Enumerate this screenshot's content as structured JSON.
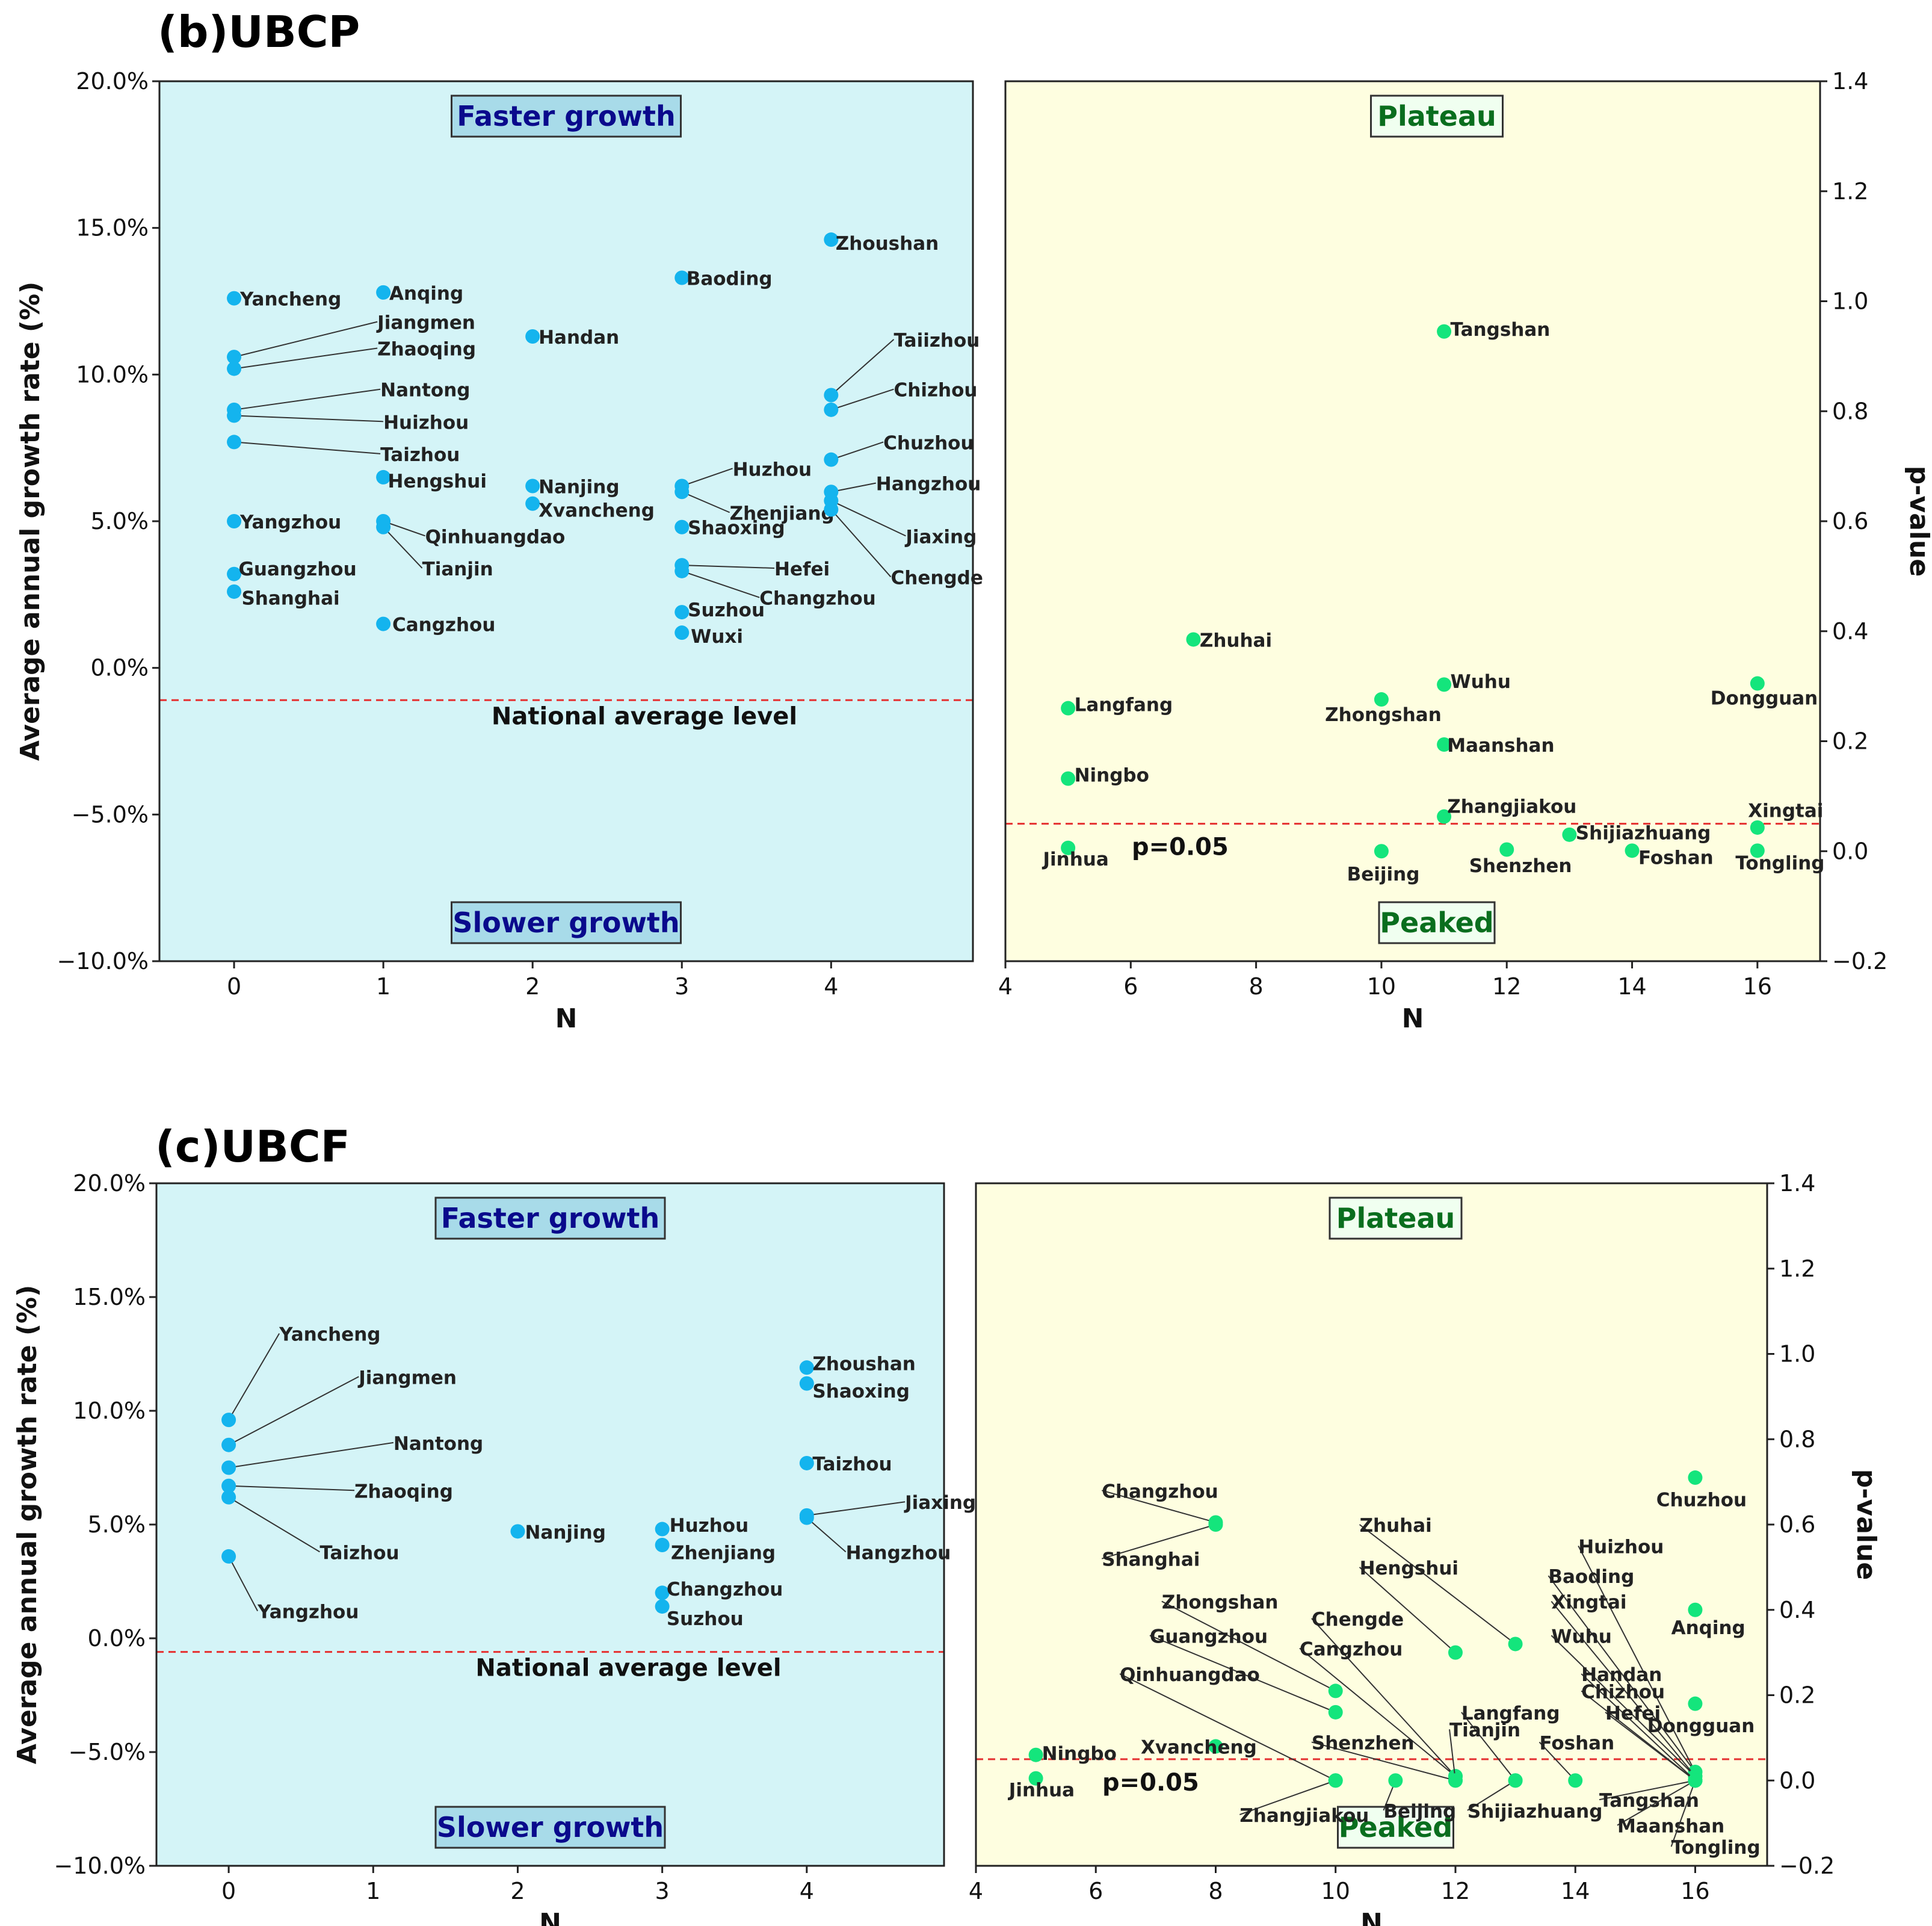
{
  "colors": {
    "left_bg": "#d4f4f7",
    "right_bg": "#fefee0",
    "left_dot": "#14b4ee",
    "right_dot": "#14e57c",
    "ref_line": "#e53030",
    "left_box_text": "#0a0a8c",
    "left_box_bg": "#a8dbe9",
    "right_box_text": "#0a6e1e",
    "right_box_bg": "#f0fff0"
  },
  "chart_data": [
    {
      "panel": "b",
      "title": "(b)UBCP",
      "left": {
        "type": "scatter",
        "xlabel": "N",
        "ylabel": "Average annual growth rate (%)",
        "xlim": [
          -0.5,
          4.95
        ],
        "ylim": [
          -10,
          20
        ],
        "xticks": [
          "0",
          "1",
          "2",
          "3",
          "4"
        ],
        "yticks": [
          "−10.0%",
          "−5.0%",
          "0.0%",
          "5.0%",
          "10.0%",
          "15.0%",
          "20.0%"
        ],
        "top_box": "Faster growth",
        "bottom_box": "Slower growth",
        "reference": {
          "y": -1.1,
          "label": "National average level"
        },
        "points": [
          {
            "name": "Yancheng",
            "x": 0,
            "y": 12.6,
            "lx": 0.04,
            "ly": 12.6
          },
          {
            "name": "Jiangmen",
            "x": 0,
            "y": 10.6,
            "lx": 0.96,
            "ly": 11.8,
            "leader": true
          },
          {
            "name": "Zhaoqing",
            "x": 0,
            "y": 10.2,
            "lx": 0.96,
            "ly": 10.9,
            "leader": true
          },
          {
            "name": "Nantong",
            "x": 0,
            "y": 8.8,
            "lx": 0.98,
            "ly": 9.5,
            "leader": true
          },
          {
            "name": "Huizhou",
            "x": 0,
            "y": 8.6,
            "lx": 1.0,
            "ly": 8.4,
            "leader": true
          },
          {
            "name": "Taizhou",
            "x": 0,
            "y": 7.7,
            "lx": 0.98,
            "ly": 7.3,
            "leader": true
          },
          {
            "name": "Yangzhou",
            "x": 0,
            "y": 5.0,
            "lx": 0.04,
            "ly": 5.0
          },
          {
            "name": "Guangzhou",
            "x": 0,
            "y": 3.2,
            "lx": 0.03,
            "ly": 3.4
          },
          {
            "name": "Shanghai",
            "x": 0,
            "y": 2.6,
            "lx": 0.05,
            "ly": 2.4
          },
          {
            "name": "Anqing",
            "x": 1,
            "y": 12.8,
            "lx": 1.04,
            "ly": 12.8
          },
          {
            "name": "Hengshui",
            "x": 1,
            "y": 6.5,
            "lx": 1.03,
            "ly": 6.4
          },
          {
            "name": "Qinhuangdao",
            "x": 1,
            "y": 5.0,
            "lx": 1.28,
            "ly": 4.5,
            "leader": true
          },
          {
            "name": "Tianjin",
            "x": 1,
            "y": 4.8,
            "lx": 1.26,
            "ly": 3.4,
            "leader": true
          },
          {
            "name": "Cangzhou",
            "x": 1,
            "y": 1.5,
            "lx": 1.06,
            "ly": 1.5
          },
          {
            "name": "Handan",
            "x": 2,
            "y": 11.3,
            "lx": 2.04,
            "ly": 11.3
          },
          {
            "name": "Nanjing",
            "x": 2,
            "y": 6.2,
            "lx": 2.04,
            "ly": 6.2
          },
          {
            "name": "Xvancheng",
            "x": 2,
            "y": 5.6,
            "lx": 2.04,
            "ly": 5.4
          },
          {
            "name": "Baoding",
            "x": 3,
            "y": 13.3,
            "lx": 3.03,
            "ly": 13.3
          },
          {
            "name": "Huzhou",
            "x": 3,
            "y": 6.2,
            "lx": 3.34,
            "ly": 6.8,
            "leader": true
          },
          {
            "name": "Zhenjiang",
            "x": 3,
            "y": 6.0,
            "lx": 3.32,
            "ly": 5.3,
            "leader": true
          },
          {
            "name": "Shaoxing",
            "x": 3,
            "y": 4.8,
            "lx": 3.04,
            "ly": 4.8
          },
          {
            "name": "Hefei",
            "x": 3,
            "y": 3.5,
            "lx": 3.62,
            "ly": 3.4,
            "leader": true
          },
          {
            "name": "Changzhou",
            "x": 3,
            "y": 3.3,
            "lx": 3.52,
            "ly": 2.4,
            "leader": true
          },
          {
            "name": "Suzhou",
            "x": 3,
            "y": 1.9,
            "lx": 3.04,
            "ly": 2.0
          },
          {
            "name": "Wuxi",
            "x": 3,
            "y": 1.2,
            "lx": 3.06,
            "ly": 1.1
          },
          {
            "name": "Zhoushan",
            "x": 4,
            "y": 14.6,
            "lx": 4.03,
            "ly": 14.5
          },
          {
            "name": "Taiizhou",
            "x": 4,
            "y": 9.3,
            "lx": 4.42,
            "ly": 11.2,
            "leader": true
          },
          {
            "name": "Chizhou",
            "x": 4,
            "y": 8.8,
            "lx": 4.42,
            "ly": 9.5,
            "leader": true
          },
          {
            "name": "Chuzhou",
            "x": 4,
            "y": 7.1,
            "lx": 4.35,
            "ly": 7.7,
            "leader": true
          },
          {
            "name": "Hangzhou",
            "x": 4,
            "y": 6.0,
            "lx": 4.3,
            "ly": 6.3,
            "leader": true
          },
          {
            "name": "Jiaxing",
            "x": 4,
            "y": 5.7,
            "lx": 4.5,
            "ly": 4.5,
            "leader": true
          },
          {
            "name": "Chengde",
            "x": 4,
            "y": 5.4,
            "lx": 4.4,
            "ly": 3.1,
            "leader": true
          }
        ]
      },
      "right": {
        "type": "scatter",
        "xlabel": "N",
        "ylabel": "p-value",
        "xlim": [
          4,
          17
        ],
        "ylim": [
          -0.2,
          1.4
        ],
        "xticks": [
          "4",
          "6",
          "8",
          "10",
          "12",
          "14",
          "16"
        ],
        "yticks": [
          "−0.2",
          "0.0",
          "0.2",
          "0.4",
          "0.6",
          "0.8",
          "1.0",
          "1.2",
          "1.4"
        ],
        "top_box": "Plateau",
        "bottom_box": "Peaked",
        "reference": {
          "y": 0.05,
          "label": "p=0.05"
        },
        "points": [
          {
            "name": "Tangshan",
            "x": 11,
            "y": 0.945,
            "lx": 11.1,
            "ly": 0.95
          },
          {
            "name": "Zhuhai",
            "x": 7,
            "y": 0.385,
            "lx": 7.1,
            "ly": 0.385
          },
          {
            "name": "Langfang",
            "x": 5,
            "y": 0.26,
            "lx": 5.1,
            "ly": 0.268
          },
          {
            "name": "Zhongshan",
            "x": 10,
            "y": 0.276,
            "lx": 9.1,
            "ly": 0.25
          },
          {
            "name": "Wuhu",
            "x": 11,
            "y": 0.303,
            "lx": 11.1,
            "ly": 0.31
          },
          {
            "name": "Dongguan",
            "x": 16,
            "y": 0.305,
            "lx": 15.25,
            "ly": 0.28
          },
          {
            "name": "Maanshan",
            "x": 11,
            "y": 0.194,
            "lx": 11.05,
            "ly": 0.194
          },
          {
            "name": "Ningbo",
            "x": 5,
            "y": 0.132,
            "lx": 5.1,
            "ly": 0.14
          },
          {
            "name": "Zhangjiakou",
            "x": 11,
            "y": 0.063,
            "lx": 11.05,
            "ly": 0.083
          },
          {
            "name": "Xingtai",
            "x": 16,
            "y": 0.043,
            "lx": 15.85,
            "ly": 0.075
          },
          {
            "name": "Jinhua",
            "x": 5,
            "y": 0.006,
            "lx": 4.6,
            "ly": -0.013
          },
          {
            "name": "Beijing",
            "x": 10,
            "y": 0.0,
            "lx": 9.45,
            "ly": -0.04
          },
          {
            "name": "Shenzhen",
            "x": 12,
            "y": 0.003,
            "lx": 11.4,
            "ly": -0.025
          },
          {
            "name": "Shijiazhuang",
            "x": 13,
            "y": 0.03,
            "lx": 13.1,
            "ly": 0.035
          },
          {
            "name": "Foshan",
            "x": 14,
            "y": 0.001,
            "lx": 14.1,
            "ly": -0.01
          },
          {
            "name": "Tongling",
            "x": 16,
            "y": 0.001,
            "lx": 15.65,
            "ly": -0.02
          }
        ]
      }
    },
    {
      "panel": "c",
      "title": "(c)UBCF",
      "left": {
        "type": "scatter",
        "xlabel": "N",
        "ylabel": "Average annual growth rate (%)",
        "xlim": [
          -0.5,
          4.95
        ],
        "ylim": [
          -10,
          20
        ],
        "xticks": [
          "0",
          "1",
          "2",
          "3",
          "4"
        ],
        "yticks": [
          "−10.0%",
          "−5.0%",
          "0.0%",
          "5.0%",
          "10.0%",
          "15.0%",
          "20.0%"
        ],
        "top_box": "Faster growth",
        "bottom_box": "Slower growth",
        "reference": {
          "y": -0.6,
          "label": "National average level"
        },
        "points": [
          {
            "name": "Yancheng",
            "x": 0,
            "y": 9.6,
            "lx": 0.35,
            "ly": 13.4,
            "leader": true
          },
          {
            "name": "Jiangmen",
            "x": 0,
            "y": 8.5,
            "lx": 0.9,
            "ly": 11.5,
            "leader": true
          },
          {
            "name": "Nantong",
            "x": 0,
            "y": 7.5,
            "lx": 1.14,
            "ly": 8.6,
            "leader": true
          },
          {
            "name": "Zhaoqing",
            "x": 0,
            "y": 6.7,
            "lx": 0.87,
            "ly": 6.5,
            "leader": true
          },
          {
            "name": "Taizhou",
            "x": 0,
            "y": 6.2,
            "lx": 0.63,
            "ly": 3.8,
            "leader": true
          },
          {
            "name": "Yangzhou",
            "x": 0,
            "y": 3.6,
            "lx": 0.2,
            "ly": 1.2,
            "leader": true
          },
          {
            "name": "Nanjing",
            "x": 2,
            "y": 4.7,
            "lx": 2.05,
            "ly": 4.7
          },
          {
            "name": "Huzhou",
            "x": 3,
            "y": 4.8,
            "lx": 3.05,
            "ly": 5.0
          },
          {
            "name": "Zhenjiang",
            "x": 3,
            "y": 4.1,
            "lx": 3.06,
            "ly": 3.8
          },
          {
            "name": "Changzhou",
            "x": 3,
            "y": 2.0,
            "lx": 3.03,
            "ly": 2.2
          },
          {
            "name": "Suzhou",
            "x": 3,
            "y": 1.4,
            "lx": 3.03,
            "ly": 0.9
          },
          {
            "name": "Zhoushan",
            "x": 4,
            "y": 11.9,
            "lx": 4.04,
            "ly": 12.1
          },
          {
            "name": "Shaoxing",
            "x": 4,
            "y": 11.2,
            "lx": 4.04,
            "ly": 10.9
          },
          {
            "name": "Taizhou",
            "x": 4,
            "y": 7.7,
            "lx": 4.04,
            "ly": 7.7
          },
          {
            "name": "Jiaxing",
            "x": 4,
            "y": 5.4,
            "lx": 4.68,
            "ly": 6.0,
            "leader": true
          },
          {
            "name": "Hangzhou",
            "x": 4,
            "y": 5.3,
            "lx": 4.27,
            "ly": 3.8,
            "leader": true
          }
        ]
      },
      "right": {
        "type": "scatter",
        "xlabel": "N",
        "ylabel": "p-value",
        "xlim": [
          4,
          17.2
        ],
        "ylim": [
          -0.2,
          1.4
        ],
        "xticks": [
          "4",
          "6",
          "8",
          "10",
          "12",
          "14",
          "16"
        ],
        "yticks": [
          "−0.2",
          "0.0",
          "0.2",
          "0.4",
          "0.6",
          "0.8",
          "1.0",
          "1.2",
          "1.4"
        ],
        "top_box": "Plateau",
        "bottom_box": "Peaked",
        "reference": {
          "y": 0.05,
          "label": "p=0.05"
        },
        "points": [
          {
            "name": "Chuzhou",
            "x": 16,
            "y": 0.71,
            "lx": 15.35,
            "ly": 0.66
          },
          {
            "name": "Changzhou",
            "x": 8,
            "y": 0.605,
            "lx": 6.1,
            "ly": 0.68,
            "leader": true
          },
          {
            "name": "Shanghai",
            "x": 8,
            "y": 0.6,
            "lx": 6.1,
            "ly": 0.52,
            "leader": true
          },
          {
            "name": "Zhuhai",
            "x": 13,
            "y": 0.32,
            "lx": 10.4,
            "ly": 0.6,
            "leader": true
          },
          {
            "name": "Huizhou",
            "x": 16,
            "y": 0.02,
            "lx": 14.05,
            "ly": 0.55,
            "leader": true
          },
          {
            "name": "Hengshui",
            "x": 12,
            "y": 0.3,
            "lx": 10.4,
            "ly": 0.5,
            "leader": true
          },
          {
            "name": "Baoding",
            "x": 16,
            "y": 0.02,
            "lx": 13.55,
            "ly": 0.48,
            "leader": true
          },
          {
            "name": "Anqing",
            "x": 16,
            "y": 0.4,
            "lx": 15.6,
            "ly": 0.36
          },
          {
            "name": "Xingtai",
            "x": 16,
            "y": 0.01,
            "lx": 13.6,
            "ly": 0.42,
            "leader": true
          },
          {
            "name": "Zhongshan",
            "x": 10,
            "y": 0.21,
            "lx": 7.1,
            "ly": 0.42,
            "leader": true
          },
          {
            "name": "Chengde",
            "x": 12,
            "y": 0.01,
            "lx": 9.6,
            "ly": 0.38,
            "leader": true
          },
          {
            "name": "Wuhu",
            "x": 16,
            "y": 0.01,
            "lx": 13.6,
            "ly": 0.34,
            "leader": true
          },
          {
            "name": "Guangzhou",
            "x": 10,
            "y": 0.16,
            "lx": 6.9,
            "ly": 0.34,
            "leader": true
          },
          {
            "name": "Cangzhou",
            "x": 12,
            "y": 0.01,
            "lx": 9.4,
            "ly": 0.31,
            "leader": true
          },
          {
            "name": "Qinhuangdao",
            "x": 10,
            "y": 0.0,
            "lx": 6.4,
            "ly": 0.25,
            "leader": true
          },
          {
            "name": "Handan",
            "x": 16,
            "y": 0.0,
            "lx": 14.1,
            "ly": 0.25,
            "leader": true
          },
          {
            "name": "Chizhou",
            "x": 16,
            "y": 0.0,
            "lx": 14.1,
            "ly": 0.21,
            "leader": true
          },
          {
            "name": "Langfang",
            "x": 13,
            "y": 0.0,
            "lx": 12.1,
            "ly": 0.16,
            "leader": true
          },
          {
            "name": "Hefei",
            "x": 16,
            "y": 0.0,
            "lx": 14.5,
            "ly": 0.16,
            "leader": true
          },
          {
            "name": "Dongguan",
            "x": 16,
            "y": 0.18,
            "lx": 15.2,
            "ly": 0.13
          },
          {
            "name": "Tianjin",
            "x": 12,
            "y": 0.0,
            "lx": 11.9,
            "ly": 0.12,
            "leader": true
          },
          {
            "name": "Shenzhen",
            "x": 12,
            "y": 0.0,
            "lx": 9.6,
            "ly": 0.09,
            "leader": true
          },
          {
            "name": "Foshan",
            "x": 14,
            "y": 0.0,
            "lx": 13.4,
            "ly": 0.09,
            "leader": true
          },
          {
            "name": "Xvancheng",
            "x": 8,
            "y": 0.08,
            "lx": 6.75,
            "ly": 0.08
          },
          {
            "name": "Ningbo",
            "x": 5,
            "y": 0.06,
            "lx": 5.1,
            "ly": 0.065
          },
          {
            "name": "Jinhua",
            "x": 5,
            "y": 0.005,
            "lx": 4.55,
            "ly": -0.02
          },
          {
            "name": "Zhangjiakou",
            "x": 10,
            "y": 0.0,
            "lx": 8.4,
            "ly": -0.08,
            "leader": true
          },
          {
            "name": "Beijing",
            "x": 11,
            "y": 0.0,
            "lx": 10.8,
            "ly": -0.07,
            "leader": true
          },
          {
            "name": "Shijiazhuang",
            "x": 13,
            "y": 0.0,
            "lx": 12.2,
            "ly": -0.07,
            "leader": true
          },
          {
            "name": "Tangshan",
            "x": 16,
            "y": 0.0,
            "lx": 14.4,
            "ly": -0.045,
            "leader": true
          },
          {
            "name": "Maanshan",
            "x": 16,
            "y": 0.0,
            "lx": 14.7,
            "ly": -0.105,
            "leader": true
          },
          {
            "name": "Tongling",
            "x": 16,
            "y": 0.0,
            "lx": 15.6,
            "ly": -0.155,
            "leader": true
          }
        ]
      }
    }
  ]
}
